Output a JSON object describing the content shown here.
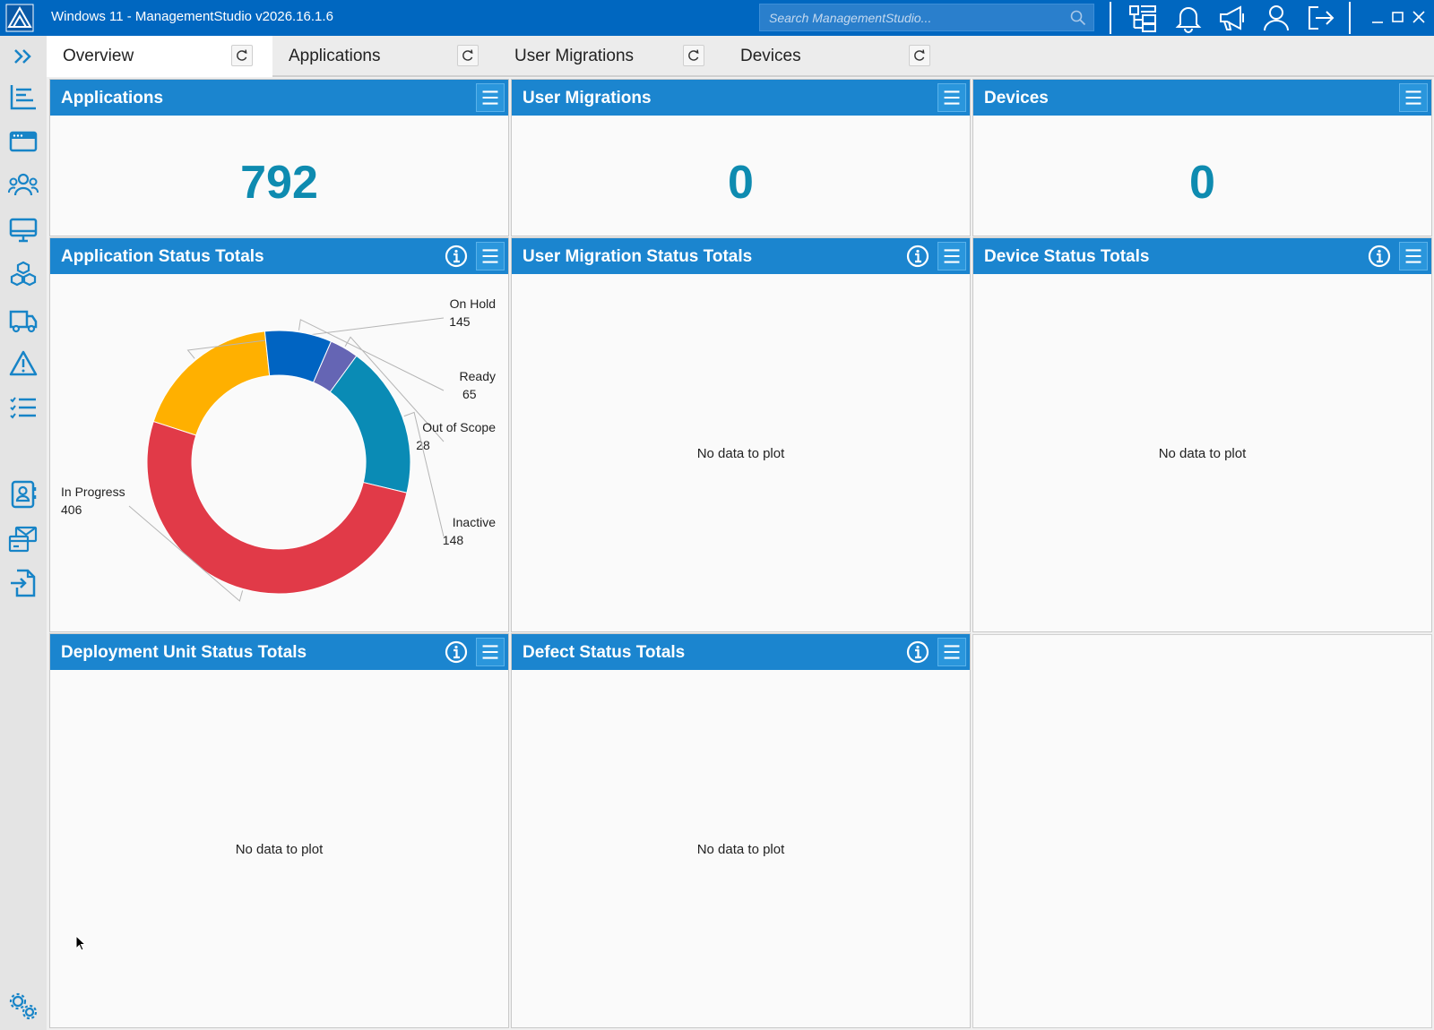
{
  "window": {
    "title": "Windows 11 - ManagementStudio v2026.16.1.6",
    "search_placeholder": "Search ManagementStudio..."
  },
  "tabs": [
    {
      "label": "Overview",
      "active": true
    },
    {
      "label": "Applications",
      "active": false
    },
    {
      "label": "User Migrations",
      "active": false
    },
    {
      "label": "Devices",
      "active": false
    }
  ],
  "sidebar": {
    "icons": [
      "expand-icon",
      "dashboard-icon",
      "applications-icon",
      "users-icon",
      "devices-icon",
      "bundles-icon",
      "deployment-icon",
      "defects-icon",
      "tasks-icon",
      "contacts-icon",
      "communications-icon",
      "import-icon",
      "settings-icon"
    ]
  },
  "counts": {
    "applications": {
      "title": "Applications",
      "value": "792"
    },
    "user_migrations": {
      "title": "User Migrations",
      "value": "0"
    },
    "devices": {
      "title": "Devices",
      "value": "0"
    }
  },
  "status_panels": {
    "application": {
      "title": "Application Status Totals"
    },
    "user_migration": {
      "title": "User Migration Status Totals",
      "empty": "No data to plot"
    },
    "device": {
      "title": "Device Status Totals",
      "empty": "No data to plot"
    },
    "deployment_unit": {
      "title": "Deployment Unit Status Totals",
      "empty": "No data to plot"
    },
    "defect": {
      "title": "Defect Status Totals",
      "empty": "No data to plot"
    }
  },
  "colors": {
    "accent": "#0067c0",
    "panel_header": "#1b85cf",
    "count": "#0e8bb0"
  },
  "chart_data": {
    "type": "pie",
    "categories": [
      "On Hold",
      "Ready",
      "Out of Scope",
      "Inactive",
      "In Progress"
    ],
    "values": [
      145,
      65,
      28,
      148,
      406
    ],
    "colors": [
      "#ffb000",
      "#0064c2",
      "#6565b4",
      "#0a8bb5",
      "#e13a48"
    ]
  }
}
